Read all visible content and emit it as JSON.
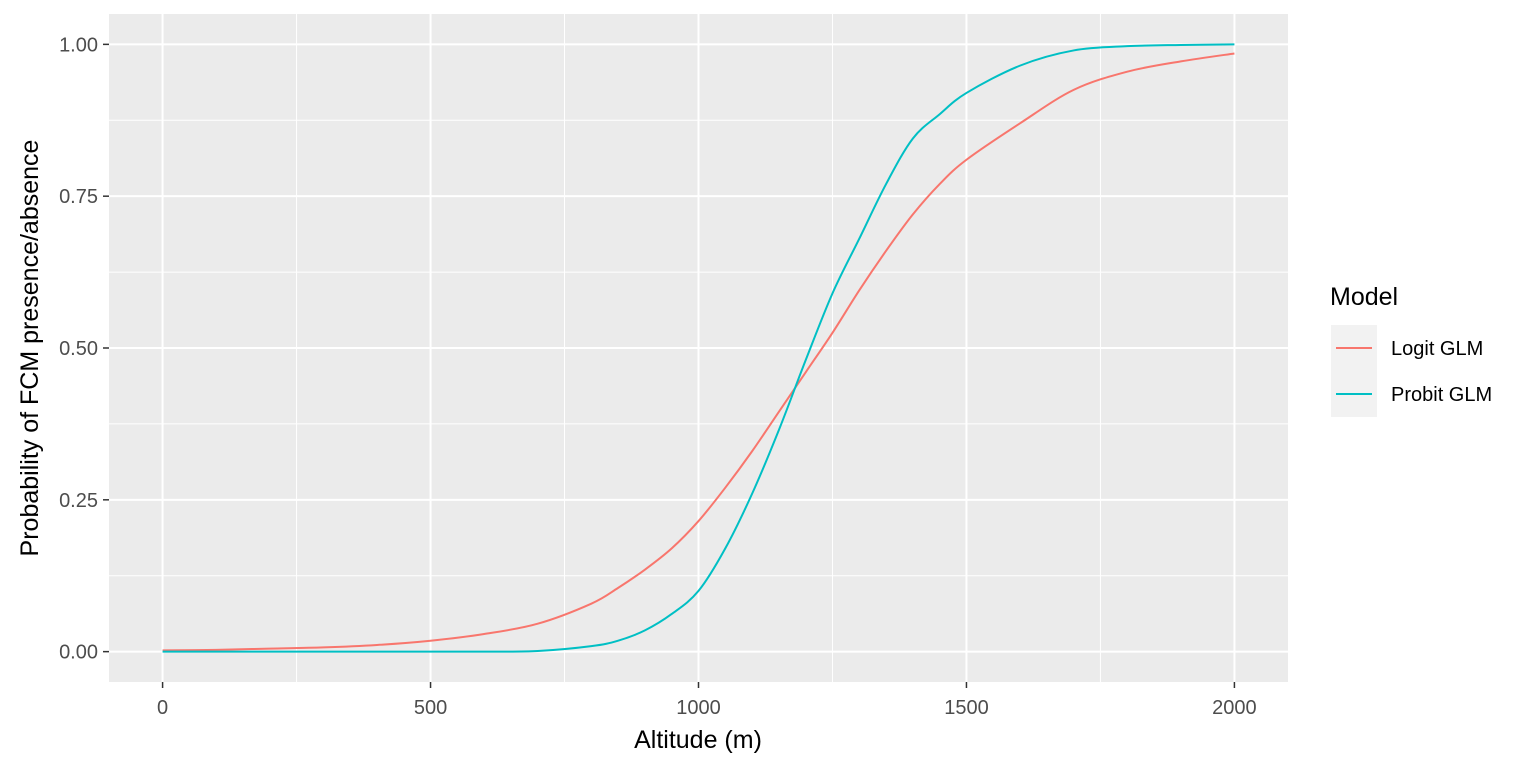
{
  "chart_data": {
    "type": "line",
    "xlabel": "Altitude (m)",
    "ylabel": "Probability of FCM presence/absence",
    "xlim": [
      -100,
      2100
    ],
    "ylim": [
      -0.05,
      1.05
    ],
    "x_ticks": [
      0,
      500,
      1000,
      1500,
      2000
    ],
    "x_tick_labels": [
      "0",
      "500",
      "1000",
      "1500",
      "2000"
    ],
    "y_ticks": [
      0,
      0.25,
      0.5,
      0.75,
      1
    ],
    "y_tick_labels": [
      "0.00",
      "0.25",
      "0.50",
      "0.75",
      "1.00"
    ],
    "grid": true,
    "legend": {
      "title": "Model",
      "position": "right"
    },
    "x": [
      0,
      100,
      200,
      300,
      400,
      500,
      600,
      700,
      800,
      850,
      900,
      950,
      1000,
      1050,
      1100,
      1150,
      1200,
      1250,
      1300,
      1350,
      1400,
      1450,
      1500,
      1600,
      1700,
      1800,
      1900,
      2000
    ],
    "series": [
      {
        "name": "Logit GLM",
        "color": "#F8766D",
        "values": [
          0.002,
          0.003,
          0.005,
          0.007,
          0.011,
          0.018,
          0.029,
          0.046,
          0.079,
          0.105,
          0.135,
          0.17,
          0.215,
          0.27,
          0.33,
          0.395,
          0.46,
          0.525,
          0.595,
          0.66,
          0.72,
          0.77,
          0.81,
          0.87,
          0.925,
          0.955,
          0.972,
          0.985
        ]
      },
      {
        "name": "Probit GLM",
        "color": "#00BFC4",
        "values": [
          0.0,
          0.0,
          0.0,
          0.0,
          0.0,
          0.0,
          0.0,
          0.001,
          0.009,
          0.018,
          0.035,
          0.062,
          0.1,
          0.17,
          0.26,
          0.365,
          0.48,
          0.59,
          0.68,
          0.77,
          0.845,
          0.885,
          0.92,
          0.965,
          0.99,
          0.997,
          0.999,
          1.0
        ]
      }
    ]
  }
}
